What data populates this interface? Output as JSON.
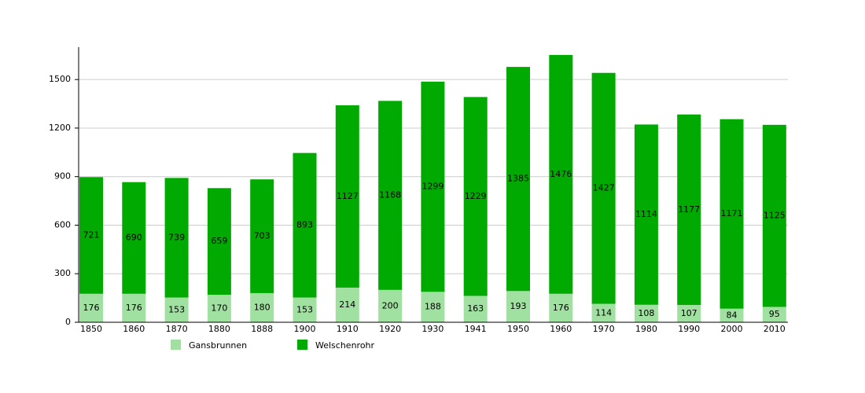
{
  "chart_data": {
    "type": "stacked_bar",
    "categories": [
      "1850",
      "1860",
      "1870",
      "1880",
      "1888",
      "1900",
      "1910",
      "1920",
      "1930",
      "1941",
      "1950",
      "1960",
      "1970",
      "1980",
      "1990",
      "2000",
      "2010"
    ],
    "series": [
      {
        "name": "Gansbrunnen",
        "color": "#a0e0a0",
        "values": [
          176,
          176,
          153,
          170,
          180,
          153,
          214,
          200,
          188,
          163,
          193,
          176,
          114,
          108,
          107,
          84,
          95
        ]
      },
      {
        "name": "Welschenrohr",
        "color": "#00aa00",
        "values": [
          721,
          690,
          739,
          659,
          703,
          893,
          1127,
          1168,
          1299,
          1229,
          1385,
          1476,
          1427,
          1114,
          1177,
          1171,
          1125
        ]
      }
    ],
    "ylim": [
      0,
      1700
    ],
    "yticks": [
      0,
      300,
      600,
      900,
      1200,
      1500
    ],
    "grid": true
  }
}
